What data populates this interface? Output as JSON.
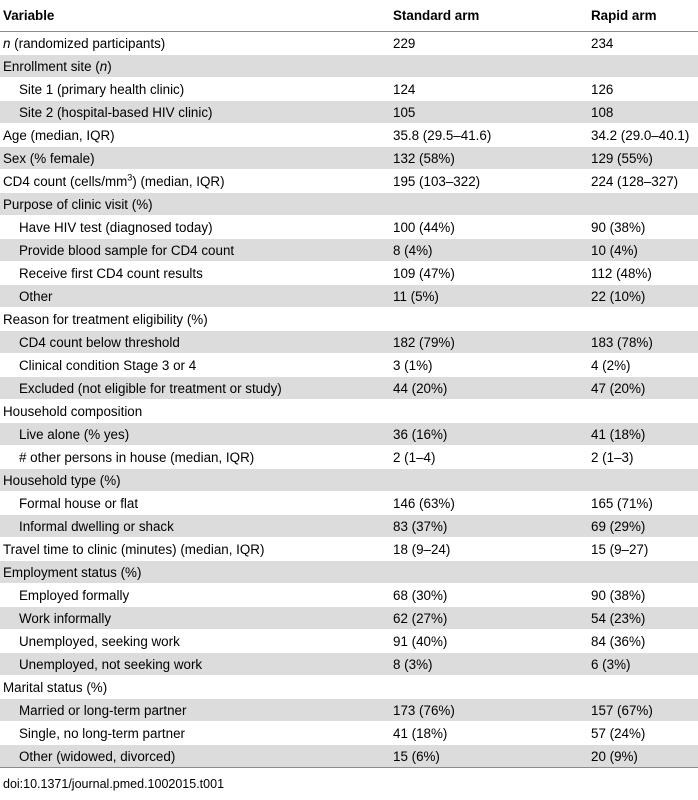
{
  "header": {
    "col1": "Variable",
    "col2": "Standard arm",
    "col3": "Rapid arm"
  },
  "rows": [
    {
      "label_italic": "n",
      "label": " (randomized participants)",
      "standard": "229",
      "rapid": "234",
      "indent": false
    },
    {
      "label": "Enrollment site (",
      "label_italic_mid": "n",
      "label_end": ")",
      "standard": "",
      "rapid": "",
      "indent": false
    },
    {
      "label": "Site 1 (primary health clinic)",
      "standard": "124",
      "rapid": "126",
      "indent": true
    },
    {
      "label": "Site 2 (hospital-based HIV clinic)",
      "standard": "105",
      "rapid": "108",
      "indent": true
    },
    {
      "label": "Age (median, IQR)",
      "standard": "35.8 (29.5–41.6)",
      "rapid": "34.2 (29.0–40.1)",
      "indent": false
    },
    {
      "label": "Sex (% female)",
      "standard": "132 (58%)",
      "rapid": "129 (55%)",
      "indent": false
    },
    {
      "label": "CD4 count (cells/mm",
      "label_sup": "3",
      "label_end": ") (median, IQR)",
      "standard": "195 (103–322)",
      "rapid": "224 (128–327)",
      "indent": false
    },
    {
      "label": "Purpose of clinic visit (%)",
      "standard": "",
      "rapid": "",
      "indent": false
    },
    {
      "label": "Have HIV test (diagnosed today)",
      "standard": "100 (44%)",
      "rapid": "90 (38%)",
      "indent": true
    },
    {
      "label": "Provide blood sample for CD4 count",
      "standard": "8 (4%)",
      "rapid": "10 (4%)",
      "indent": true
    },
    {
      "label": "Receive first CD4 count results",
      "standard": "109 (47%)",
      "rapid": "112 (48%)",
      "indent": true
    },
    {
      "label": "Other",
      "standard": "11 (5%)",
      "rapid": "22 (10%)",
      "indent": true
    },
    {
      "label": "Reason for treatment eligibility (%)",
      "standard": "",
      "rapid": "",
      "indent": false
    },
    {
      "label": "CD4 count below threshold",
      "standard": "182 (79%)",
      "rapid": "183 (78%)",
      "indent": true
    },
    {
      "label": "Clinical condition Stage 3 or 4",
      "standard": "3 (1%)",
      "rapid": "4 (2%)",
      "indent": true
    },
    {
      "label": "Excluded (not eligible for treatment or study)",
      "standard": "44 (20%)",
      "rapid": "47 (20%)",
      "indent": true
    },
    {
      "label": "Household composition",
      "standard": "",
      "rapid": "",
      "indent": false
    },
    {
      "label": "Live alone (% yes)",
      "standard": "36 (16%)",
      "rapid": "41 (18%)",
      "indent": true
    },
    {
      "label": "# other persons in house (median, IQR)",
      "standard": "2 (1–4)",
      "rapid": "2 (1–3)",
      "indent": true
    },
    {
      "label": "Household type (%)",
      "standard": "",
      "rapid": "",
      "indent": false
    },
    {
      "label": "Formal house or flat",
      "standard": "146 (63%)",
      "rapid": "165 (71%)",
      "indent": true
    },
    {
      "label": "Informal dwelling or shack",
      "standard": "83 (37%)",
      "rapid": "69 (29%)",
      "indent": true
    },
    {
      "label": "Travel time to clinic (minutes) (median, IQR)",
      "standard": "18 (9–24)",
      "rapid": "15 (9–27)",
      "indent": false
    },
    {
      "label": "Employment status (%)",
      "standard": "",
      "rapid": "",
      "indent": false
    },
    {
      "label": "Employed formally",
      "standard": "68 (30%)",
      "rapid": "90 (38%)",
      "indent": true
    },
    {
      "label": "Work informally",
      "standard": "62 (27%)",
      "rapid": "54 (23%)",
      "indent": true
    },
    {
      "label": "Unemployed, seeking work",
      "standard": "91 (40%)",
      "rapid": "84 (36%)",
      "indent": true
    },
    {
      "label": "Unemployed, not seeking work",
      "standard": "8 (3%)",
      "rapid": "6 (3%)",
      "indent": true
    },
    {
      "label": "Marital status (%)",
      "standard": "",
      "rapid": "",
      "indent": false
    },
    {
      "label": "Married or long-term partner",
      "standard": "173 (76%)",
      "rapid": "157 (67%)",
      "indent": true
    },
    {
      "label": "Single, no long-term partner",
      "standard": "41 (18%)",
      "rapid": "57 (24%)",
      "indent": true
    },
    {
      "label": "Other (widowed, divorced)",
      "standard": "15 (6%)",
      "rapid": "20 (9%)",
      "indent": true
    }
  ],
  "footer": {
    "doi": "doi:10.1371/journal.pmed.1002015.t001"
  },
  "colors": {
    "row_shade": "#dcdcdc",
    "rule": "#8c8c8c"
  }
}
